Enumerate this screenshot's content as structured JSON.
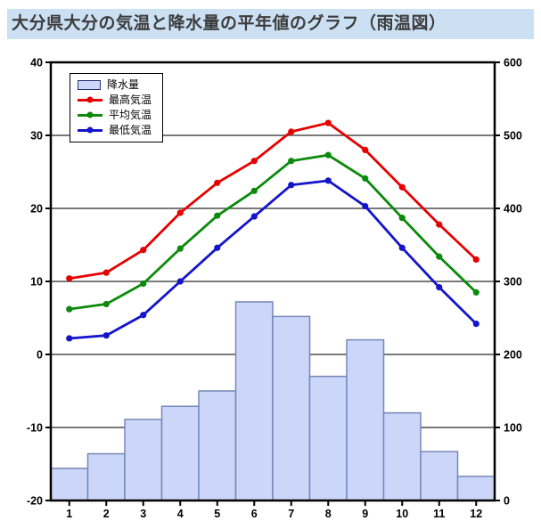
{
  "page": {
    "title": "大分県大分の気温と降水量の平年値のグラフ（雨温図）"
  },
  "colors": {
    "title_bg": "#cce0f3",
    "title_text": "#3c3c3c",
    "bar_fill": "#ccd6f8",
    "bar_stroke": "#7688b8",
    "max_temp_red": "#e60000",
    "avg_temp_green": "#0b8a0b",
    "min_temp_blue": "#1414cc",
    "gridline": "#4d4d4d",
    "frame": "#000000"
  },
  "chart_data": {
    "type": "combo: bar (precipitation, right axis, mm) + line (temperature, left axis, °C)",
    "title": "大分県大分の気温と降水量の平年値のグラフ（雨温図）",
    "categories": [
      "1",
      "2",
      "3",
      "4",
      "5",
      "6",
      "7",
      "8",
      "9",
      "10",
      "11",
      "12"
    ],
    "precipitation": {
      "name": "降水量",
      "values": [
        44,
        64,
        111,
        129,
        150,
        272,
        252,
        170,
        220,
        120,
        67,
        33
      ]
    },
    "series": [
      {
        "name": "最高気温",
        "color": "#e60000",
        "values": [
          10.4,
          11.2,
          14.3,
          19.4,
          23.5,
          26.5,
          30.5,
          31.7,
          28.0,
          22.9,
          17.8,
          13.0
        ]
      },
      {
        "name": "平均気温",
        "color": "#0b8a0b",
        "values": [
          6.2,
          6.9,
          9.7,
          14.5,
          19.0,
          22.4,
          26.5,
          27.3,
          24.1,
          18.7,
          13.4,
          8.5
        ]
      },
      {
        "name": "最低気温",
        "color": "#1414cc",
        "values": [
          2.2,
          2.6,
          5.4,
          10.0,
          14.6,
          18.9,
          23.2,
          23.8,
          20.3,
          14.6,
          9.2,
          4.2
        ]
      }
    ],
    "left_axis": {
      "min": -20,
      "max": 40,
      "ticks": [
        40,
        30,
        20,
        10,
        0,
        -10,
        -20
      ]
    },
    "right_axis": {
      "min": 0,
      "max": 600,
      "ticks": [
        600,
        500,
        400,
        300,
        200,
        100,
        0
      ]
    },
    "legend": [
      "降水量",
      "最高気温",
      "平均気温",
      "最低気温"
    ],
    "legend_position": "top-left",
    "grid": "horizontal only"
  }
}
